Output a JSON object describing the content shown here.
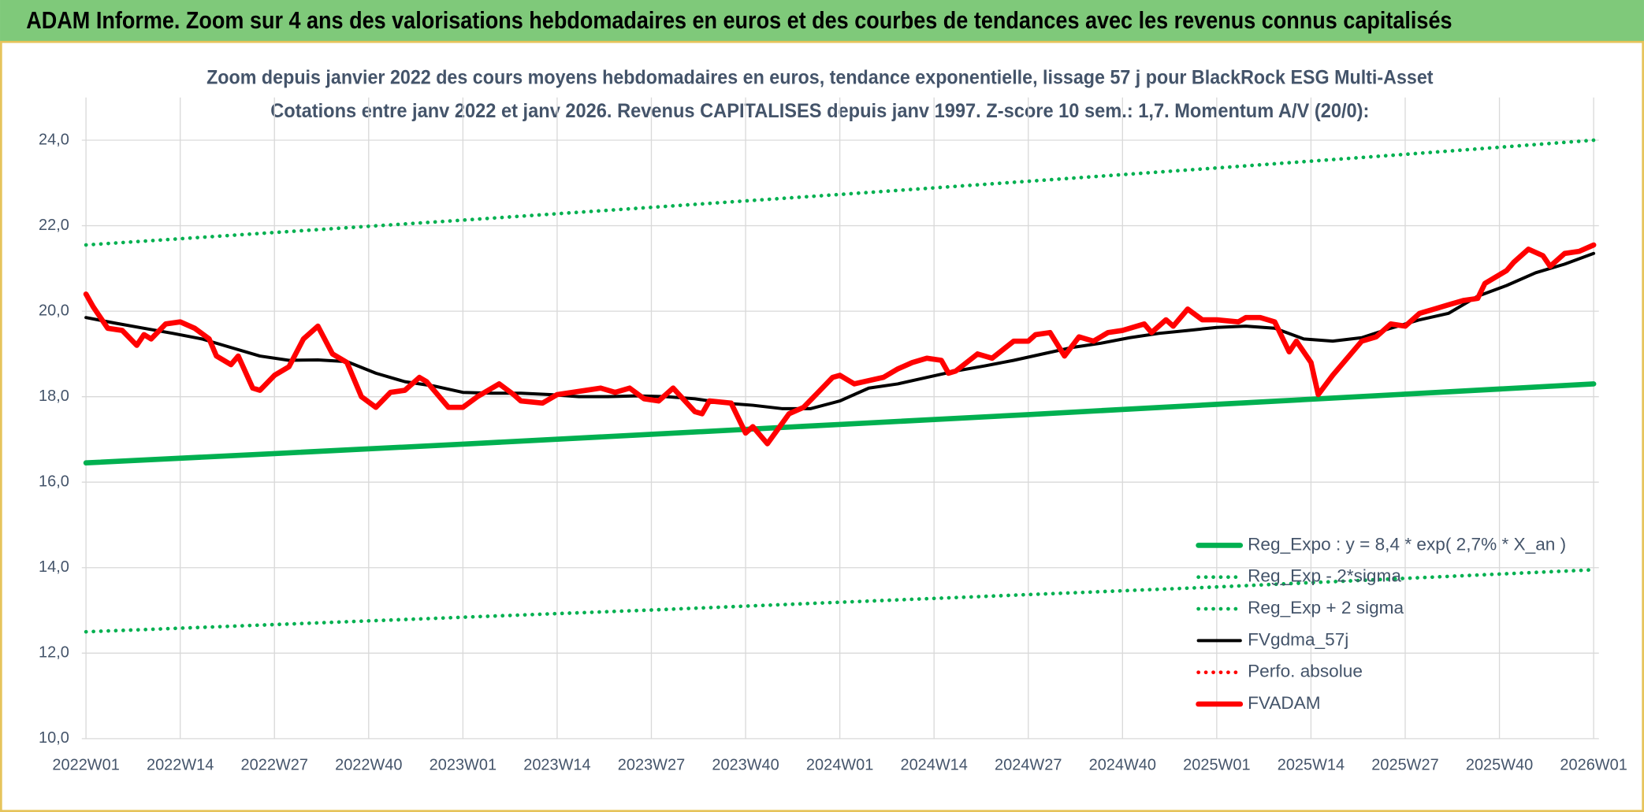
{
  "chart_data": {
    "type": "line",
    "title": "ADAM Informe. Zoom sur 4 ans des valorisations hebdomadaires en euros et des courbes de tendances avec les revenus connus capitalisés",
    "subtitle": [
      "Zoom depuis janvier 2022 des cours moyens hebdomadaires en euros, tendance exponentielle, lissage 57 j pour BlackRock ESG Multi-Asset",
      "Cotations entre janv 2022 et janv 2026. Revenus CAPITALISES depuis janv 1997. Z-score 10 sem.: 1,7. Momentum A/V (20/0):"
    ],
    "xlim": [
      0,
      208
    ],
    "xticks": [
      {
        "value": 0,
        "label": "2022W01"
      },
      {
        "value": 13,
        "label": "2022W14"
      },
      {
        "value": 26,
        "label": "2022W27"
      },
      {
        "value": 39,
        "label": "2022W40"
      },
      {
        "value": 52,
        "label": "2023W01"
      },
      {
        "value": 65,
        "label": "2023W14"
      },
      {
        "value": 78,
        "label": "2023W27"
      },
      {
        "value": 91,
        "label": "2023W40"
      },
      {
        "value": 104,
        "label": "2024W01"
      },
      {
        "value": 117,
        "label": "2024W14"
      },
      {
        "value": 130,
        "label": "2024W27"
      },
      {
        "value": 143,
        "label": "2024W40"
      },
      {
        "value": 156,
        "label": "2025W01"
      },
      {
        "value": 169,
        "label": "2025W14"
      },
      {
        "value": 182,
        "label": "2025W27"
      },
      {
        "value": 195,
        "label": "2025W40"
      },
      {
        "value": 208,
        "label": "2026W01"
      }
    ],
    "ylim": [
      10,
      25
    ],
    "yticks": [
      {
        "value": 10,
        "label": "10,0"
      },
      {
        "value": 12,
        "label": "12,0"
      },
      {
        "value": 14,
        "label": "14,0"
      },
      {
        "value": 16,
        "label": "16,0"
      },
      {
        "value": 18,
        "label": "18,0"
      },
      {
        "value": 20,
        "label": "20,0"
      },
      {
        "value": 22,
        "label": "22,0"
      },
      {
        "value": 24,
        "label": "24,0"
      }
    ],
    "grid": true,
    "legend": "lower right",
    "series": [
      {
        "name": "Reg_Expo : y = 8,4 * exp( 2,7% *  X_an )",
        "color": "#00b050",
        "style": "solid",
        "x": [
          0,
          26,
          52,
          78,
          104,
          130,
          156,
          182,
          208
        ],
        "values": [
          16.45,
          16.67,
          16.89,
          17.12,
          17.35,
          17.58,
          17.82,
          18.06,
          18.3
        ]
      },
      {
        "name": "Reg_Exp - 2*sigma",
        "color": "#00b050",
        "style": "dotted",
        "x": [
          0,
          26,
          52,
          78,
          104,
          130,
          156,
          182,
          208
        ],
        "values": [
          12.5,
          12.67,
          12.84,
          13.01,
          13.19,
          13.37,
          13.55,
          13.75,
          13.95
        ]
      },
      {
        "name": "Reg_Exp + 2 sigma",
        "color": "#00b050",
        "style": "dotted",
        "x": [
          0,
          26,
          52,
          78,
          104,
          130,
          156,
          182,
          208
        ],
        "values": [
          21.55,
          21.84,
          22.13,
          22.43,
          22.73,
          23.04,
          23.35,
          23.67,
          24.0
        ]
      },
      {
        "name": "FVgdma_57j",
        "color": "#000000",
        "style": "solid",
        "x": [
          0,
          4,
          8,
          12,
          16,
          20,
          24,
          28,
          32,
          36,
          40,
          44,
          48,
          52,
          56,
          60,
          64,
          68,
          72,
          76,
          80,
          84,
          88,
          92,
          96,
          100,
          104,
          108,
          112,
          116,
          120,
          124,
          128,
          132,
          136,
          140,
          144,
          148,
          152,
          156,
          160,
          164,
          168,
          172,
          176,
          180,
          184,
          188,
          192,
          196,
          200,
          204,
          208
        ],
        "values": [
          19.85,
          19.72,
          19.6,
          19.48,
          19.35,
          19.15,
          18.95,
          18.85,
          18.86,
          18.82,
          18.55,
          18.35,
          18.25,
          18.1,
          18.08,
          18.08,
          18.05,
          18.0,
          18.0,
          18.02,
          18.0,
          17.95,
          17.85,
          17.8,
          17.72,
          17.72,
          17.9,
          18.2,
          18.3,
          18.45,
          18.6,
          18.72,
          18.85,
          19.0,
          19.15,
          19.25,
          19.38,
          19.48,
          19.55,
          19.62,
          19.65,
          19.6,
          19.35,
          19.3,
          19.38,
          19.6,
          19.8,
          19.95,
          20.35,
          20.6,
          20.9,
          21.1,
          21.35
        ]
      },
      {
        "name": "Perfo. absolue",
        "color": "#ff0000",
        "style": "dotted",
        "x": [],
        "values": []
      },
      {
        "name": "FVADAM",
        "color": "#ff0000",
        "style": "solid",
        "x": [
          0,
          1,
          3,
          5,
          7,
          8,
          9,
          11,
          13,
          15,
          17,
          18,
          20,
          21,
          23,
          24,
          26,
          28,
          30,
          32,
          34,
          36,
          38,
          40,
          42,
          44,
          46,
          47,
          50,
          52,
          54,
          57,
          59,
          60,
          63,
          65,
          69,
          71,
          73,
          75,
          77,
          79,
          81,
          84,
          85,
          86,
          89,
          91,
          92,
          94,
          97,
          99,
          101,
          103,
          104,
          106,
          110,
          112,
          114,
          116,
          118,
          119,
          120,
          123,
          125,
          128,
          130,
          131,
          133,
          135,
          137,
          139,
          141,
          143,
          146,
          147,
          149,
          150,
          152,
          154,
          156,
          159,
          160,
          162,
          164,
          166,
          167,
          169,
          170,
          172,
          174,
          176,
          178,
          180,
          182,
          184,
          186,
          188,
          190,
          192,
          193,
          196,
          197,
          199,
          201,
          202,
          204,
          206,
          208
        ],
        "values": [
          20.4,
          20.1,
          19.6,
          19.55,
          19.2,
          19.45,
          19.35,
          19.7,
          19.75,
          19.6,
          19.35,
          18.95,
          18.75,
          18.95,
          18.2,
          18.15,
          18.5,
          18.7,
          19.35,
          19.65,
          19.0,
          18.8,
          18.0,
          17.75,
          18.1,
          18.15,
          18.45,
          18.35,
          17.75,
          17.75,
          18.0,
          18.3,
          18.05,
          17.9,
          17.85,
          18.05,
          18.15,
          18.2,
          18.1,
          18.2,
          17.95,
          17.9,
          18.2,
          17.65,
          17.6,
          17.9,
          17.85,
          17.15,
          17.3,
          16.9,
          17.6,
          17.75,
          18.1,
          18.45,
          18.5,
          18.3,
          18.45,
          18.65,
          18.8,
          18.9,
          18.85,
          18.55,
          18.6,
          19.0,
          18.9,
          19.3,
          19.3,
          19.45,
          19.5,
          18.95,
          19.4,
          19.3,
          19.5,
          19.55,
          19.7,
          19.5,
          19.8,
          19.65,
          20.05,
          19.8,
          19.8,
          19.75,
          19.85,
          19.85,
          19.75,
          19.05,
          19.3,
          18.8,
          18.05,
          18.5,
          18.9,
          19.3,
          19.4,
          19.7,
          19.65,
          19.95,
          20.05,
          20.15,
          20.25,
          20.3,
          20.65,
          20.95,
          21.15,
          21.45,
          21.3,
          21.05,
          21.35,
          21.4,
          21.55
        ]
      }
    ]
  }
}
